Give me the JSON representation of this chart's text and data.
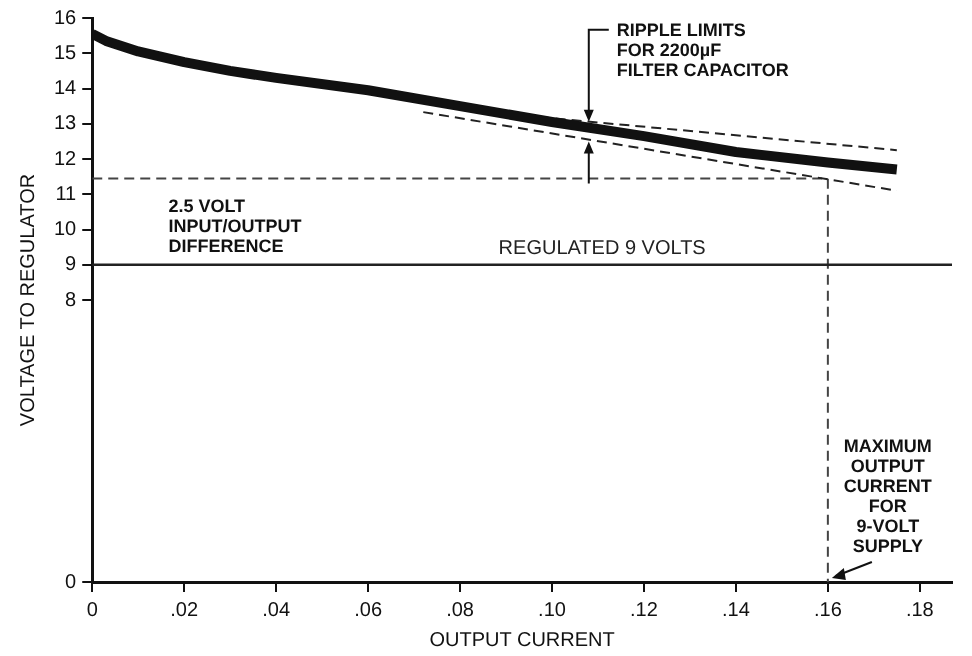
{
  "chart_data": {
    "type": "line",
    "xlabel": "OUTPUT CURRENT",
    "ylabel": "VOLTAGE TO REGULATOR",
    "xlim": [
      0,
      0.187
    ],
    "xticks": [
      0,
      {
        "value": 0.02,
        "label": ".02"
      },
      {
        "value": 0.04,
        "label": ".04"
      },
      {
        "value": 0.06,
        "label": ".06"
      },
      {
        "value": 0.08,
        "label": ".08"
      },
      {
        "value": 0.1,
        "label": ".10"
      },
      {
        "value": 0.12,
        "label": ".12"
      },
      {
        "value": 0.14,
        "label": ".14"
      },
      {
        "value": 0.16,
        "label": ".16"
      },
      {
        "value": 0.18,
        "label": ".18"
      }
    ],
    "ylim": [
      0,
      16
    ],
    "yticks": [
      0,
      8,
      9,
      10,
      11,
      12,
      13,
      14,
      15,
      16
    ],
    "grid": false,
    "legend": false,
    "marker": "none",
    "series": [
      {
        "color": "#111111",
        "line_style": "solid",
        "x": [
          0,
          0.003,
          0.01,
          0.02,
          0.03,
          0.04,
          0.06,
          0.08,
          0.1,
          0.12,
          0.14,
          0.16,
          0.175
        ],
        "values": [
          15.55,
          15.35,
          15.05,
          14.75,
          14.5,
          14.3,
          13.95,
          13.5,
          13.05,
          12.65,
          12.2,
          11.9,
          11.7
        ]
      },
      {
        "color": "#222222",
        "line_style": "dashed",
        "x": [
          0.08,
          0.175
        ],
        "values": [
          13.4,
          12.25
        ]
      },
      {
        "color": "#222222",
        "line_style": "dashed",
        "x": [
          0.072,
          0.175
        ],
        "values": [
          13.33,
          11.1
        ]
      },
      {
        "color": "#444444",
        "line_style": "dashed",
        "x": [
          0,
          0.16,
          0.16
        ],
        "values": [
          11.45,
          11.45,
          0
        ]
      }
    ],
    "ref_lines": [
      {
        "axis": "y",
        "value": 9,
        "label": "REGULATED 9 VOLTS",
        "color": "#222222",
        "line_style": "solid"
      }
    ],
    "annotations": [
      {
        "text": "RIPPLE LIMITS\nFOR 2200µF\nFILTER CAPACITOR",
        "x": 0.108,
        "y": 13.06
      },
      "2.5 VOLT\nINPUT/OUTPUT\nDIFFERENCE",
      {
        "text": "MAXIMUM\nOUTPUT\nCURRENT\nFOR\n9-VOLT\nSUPPLY",
        "x": 0.16,
        "y": 0
      }
    ]
  }
}
